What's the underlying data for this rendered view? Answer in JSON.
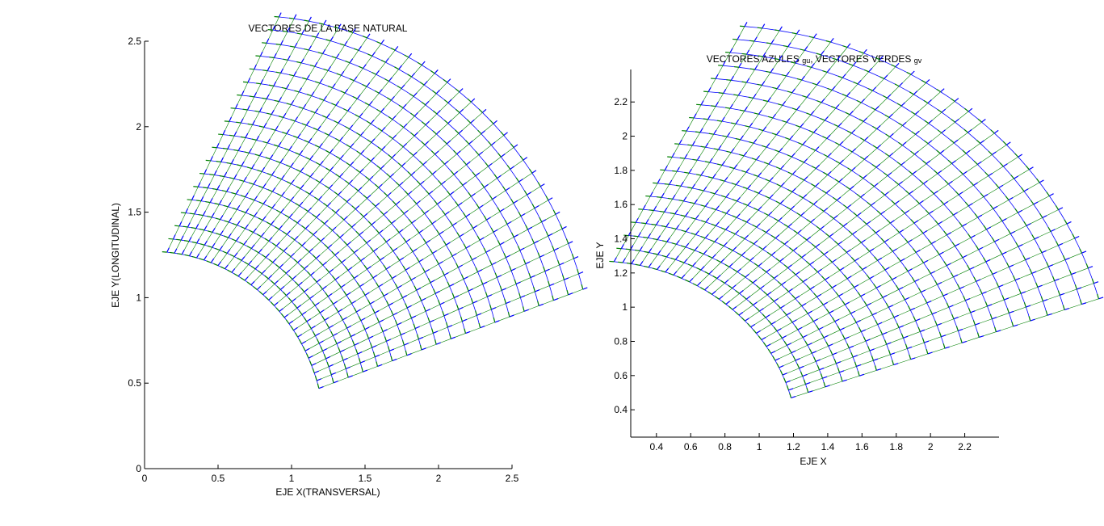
{
  "figure": {
    "background": "#ffffff"
  },
  "chart_data": [
    {
      "type": "quiver",
      "title": "VECTORES DE LA BASE NATURAL",
      "xlabel": "EJE X(TRANSVERSAL)",
      "ylabel": "EJE Y(LONGITUDINAL)",
      "xlim": [
        0,
        2.5
      ],
      "ylim": [
        0,
        2.5
      ],
      "xticks": [
        "0",
        "0.5",
        "1",
        "1.5",
        "2",
        "2.5"
      ],
      "xtick_values": [
        0,
        0.5,
        1,
        1.5,
        2,
        2.5
      ],
      "yticks": [
        "0",
        "0.5",
        "1",
        "1.5",
        "2",
        "2.5"
      ],
      "ytick_values": [
        0,
        0.5,
        1,
        1.5,
        2,
        2.5
      ],
      "box": "axes-lines-only",
      "grid": false,
      "domain": {
        "u_range": [
          1.0,
          2.0
        ],
        "v_range_deg": [
          15,
          85
        ],
        "u_steps": 18,
        "v_steps": 28
      },
      "series": [
        {
          "values_note": "",
          "color": "#0000ff"
        },
        {
          "values_note": "",
          "color": "#008000"
        }
      ],
      "line_color": "#0000ff",
      "vector_u_color": "#0000ff",
      "vector_v_color": "#008000"
    },
    {
      "type": "quiver",
      "title_main": "VECTORES AZULES ",
      "title_u": "gu",
      "title_mid": ", VECTORES VERDES ",
      "title_v": "gv",
      "xlabel": "EJE X",
      "ylabel": "EJE Y",
      "xlim": [
        0.25,
        2.4
      ],
      "ylim": [
        0.24,
        2.39
      ],
      "xticks": [
        "0.4",
        "0.6",
        "0.8",
        "1",
        "1.2",
        "1.4",
        "1.6",
        "1.8",
        "2",
        "2.2"
      ],
      "xtick_values": [
        0.4,
        0.6,
        0.8,
        1.0,
        1.2,
        1.4,
        1.6,
        1.8,
        2.0,
        2.2
      ],
      "yticks": [
        "0.4",
        "0.6",
        "0.8",
        "1",
        "1.2",
        "1.4",
        "1.6",
        "1.8",
        "2",
        "2.2"
      ],
      "ytick_values": [
        0.4,
        0.6,
        0.8,
        1.0,
        1.2,
        1.4,
        1.6,
        1.8,
        2.0,
        2.2
      ],
      "box": "axes-lines-only",
      "grid": false,
      "domain": {
        "u_range": [
          1.0,
          2.0
        ],
        "v_range_deg": [
          15,
          85
        ],
        "u_steps": 18,
        "v_steps": 28
      },
      "line_color": "#0000ff",
      "vector_u_color": "#0000ff",
      "vector_v_color": "#008000"
    }
  ]
}
